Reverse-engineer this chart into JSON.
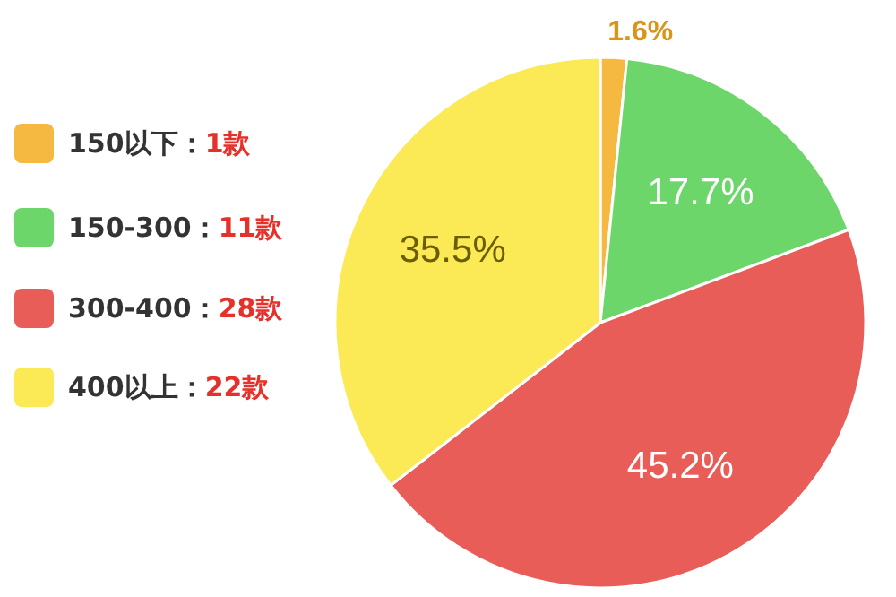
{
  "chart_data": {
    "type": "pie",
    "categories": [
      "150以下：1款",
      "150-300：11款",
      "300-400：28款",
      "400以上：22款"
    ],
    "values": [
      1.6,
      17.7,
      45.2,
      35.5
    ],
    "value_labels": [
      "1.6%",
      "17.7%",
      "45.2%",
      "35.5%"
    ],
    "colors": [
      "#f5b942",
      "#6dd66a",
      "#e95d58",
      "#fbe955"
    ],
    "legend": "left"
  }
}
